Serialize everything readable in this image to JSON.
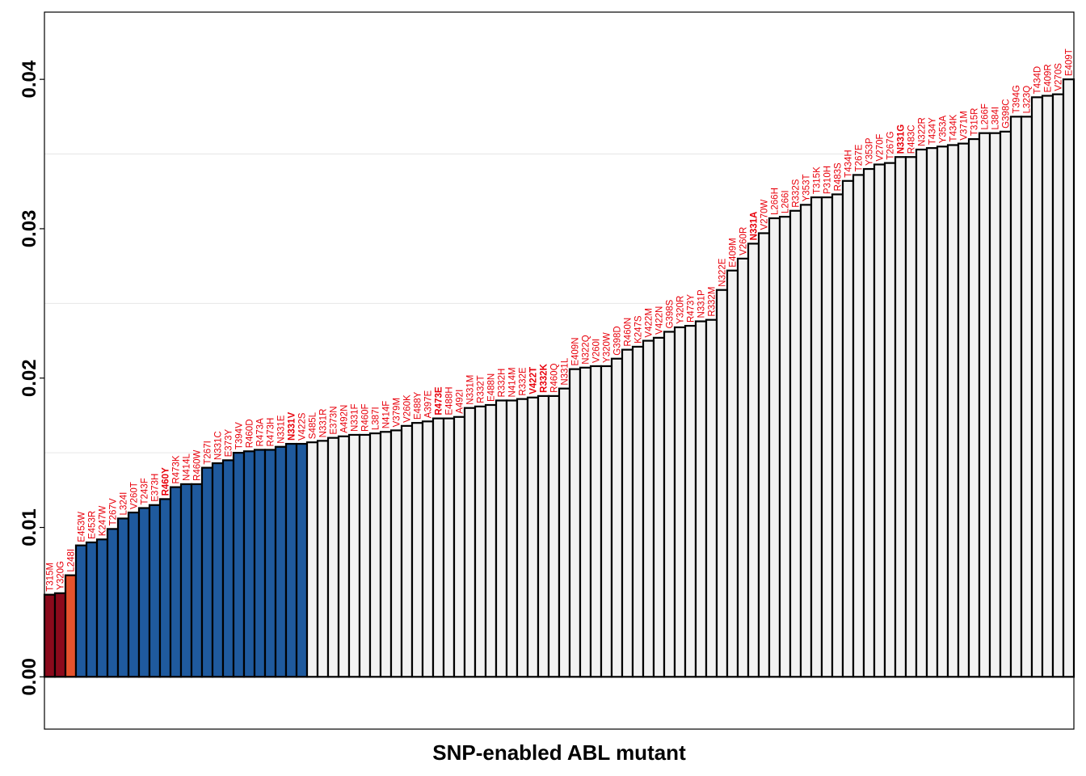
{
  "chart_data": {
    "type": "bar",
    "xlabel": "SNP-enabled ABL mutant",
    "ylabel": "",
    "ylim": [
      -0.0035,
      0.0445
    ],
    "yticks": [
      0.0,
      0.01,
      0.02,
      0.03,
      0.04
    ],
    "ytick_labels": [
      "0.00",
      "0.01",
      "0.02",
      "0.03",
      "0.04"
    ],
    "grid": "horizontal minor lines only",
    "label_color": "#e8000b",
    "bar_outline_color": "#000000",
    "group_colors": {
      "dark_red": "#8b0a1c",
      "orange": "#e6532d",
      "blue": "#1f5a9e",
      "white": "#f2f2f2"
    },
    "bars": [
      {
        "label": "T315M",
        "value": 0.0055,
        "color": "#8b0a1c"
      },
      {
        "label": "Y320G",
        "value": 0.0056,
        "color": "#8b0a1c"
      },
      {
        "label": "L248I",
        "value": 0.0068,
        "color": "#e6532d"
      },
      {
        "label": "E453W",
        "value": 0.0088,
        "color": "#1f5a9e"
      },
      {
        "label": "E453R",
        "value": 0.009,
        "color": "#1f5a9e"
      },
      {
        "label": "K247W",
        "value": 0.0092,
        "color": "#1f5a9e"
      },
      {
        "label": "T267V",
        "value": 0.0099,
        "color": "#1f5a9e"
      },
      {
        "label": "L324I",
        "value": 0.0106,
        "color": "#1f5a9e"
      },
      {
        "label": "V260T",
        "value": 0.011,
        "color": "#1f5a9e"
      },
      {
        "label": "T243F",
        "value": 0.0113,
        "color": "#1f5a9e"
      },
      {
        "label": "E373H",
        "value": 0.0115,
        "color": "#1f5a9e"
      },
      {
        "label": "R460Y",
        "value": 0.0119,
        "color": "#1f5a9e",
        "bold": true
      },
      {
        "label": "R473K",
        "value": 0.0127,
        "color": "#1f5a9e"
      },
      {
        "label": "N414L",
        "value": 0.0129,
        "color": "#1f5a9e"
      },
      {
        "label": "R460W",
        "value": 0.0129,
        "color": "#1f5a9e"
      },
      {
        "label": "T267I",
        "value": 0.014,
        "color": "#1f5a9e"
      },
      {
        "label": "N331C",
        "value": 0.0143,
        "color": "#1f5a9e"
      },
      {
        "label": "E373Y",
        "value": 0.0145,
        "color": "#1f5a9e"
      },
      {
        "label": "T394V",
        "value": 0.015,
        "color": "#1f5a9e"
      },
      {
        "label": "R460D",
        "value": 0.0151,
        "color": "#1f5a9e"
      },
      {
        "label": "R473A",
        "value": 0.0152,
        "color": "#1f5a9e"
      },
      {
        "label": "R473H",
        "value": 0.0152,
        "color": "#1f5a9e"
      },
      {
        "label": "N331E",
        "value": 0.0154,
        "color": "#1f5a9e"
      },
      {
        "label": "N331V",
        "value": 0.0156,
        "color": "#1f5a9e",
        "bold": true
      },
      {
        "label": "V422S",
        "value": 0.0156,
        "color": "#1f5a9e"
      },
      {
        "label": "S485L",
        "value": 0.0157,
        "color": "#f2f2f2"
      },
      {
        "label": "N331R",
        "value": 0.0158,
        "color": "#f2f2f2"
      },
      {
        "label": "E373N",
        "value": 0.016,
        "color": "#f2f2f2"
      },
      {
        "label": "A492N",
        "value": 0.0161,
        "color": "#f2f2f2"
      },
      {
        "label": "N331F",
        "value": 0.0162,
        "color": "#f2f2f2"
      },
      {
        "label": "R460F",
        "value": 0.0162,
        "color": "#f2f2f2"
      },
      {
        "label": "L387I",
        "value": 0.0163,
        "color": "#f2f2f2"
      },
      {
        "label": "N414F",
        "value": 0.0164,
        "color": "#f2f2f2"
      },
      {
        "label": "V379M",
        "value": 0.0165,
        "color": "#f2f2f2"
      },
      {
        "label": "V260K",
        "value": 0.0168,
        "color": "#f2f2f2"
      },
      {
        "label": "E488Y",
        "value": 0.017,
        "color": "#f2f2f2"
      },
      {
        "label": "A397E",
        "value": 0.0171,
        "color": "#f2f2f2"
      },
      {
        "label": "R473E",
        "value": 0.0173,
        "color": "#f2f2f2",
        "bold": true
      },
      {
        "label": "E488H",
        "value": 0.0173,
        "color": "#f2f2f2"
      },
      {
        "label": "A492I",
        "value": 0.0174,
        "color": "#f2f2f2"
      },
      {
        "label": "N331M",
        "value": 0.018,
        "color": "#f2f2f2"
      },
      {
        "label": "R332T",
        "value": 0.0181,
        "color": "#f2f2f2"
      },
      {
        "label": "E488N",
        "value": 0.0182,
        "color": "#f2f2f2"
      },
      {
        "label": "R332H",
        "value": 0.0185,
        "color": "#f2f2f2"
      },
      {
        "label": "N414M",
        "value": 0.0185,
        "color": "#f2f2f2"
      },
      {
        "label": "R332E",
        "value": 0.0186,
        "color": "#f2f2f2"
      },
      {
        "label": "V422T",
        "value": 0.0187,
        "color": "#f2f2f2",
        "bold": true
      },
      {
        "label": "R332K",
        "value": 0.0188,
        "color": "#f2f2f2",
        "bold": true
      },
      {
        "label": "R460Q",
        "value": 0.0188,
        "color": "#f2f2f2"
      },
      {
        "label": "N331L",
        "value": 0.0193,
        "color": "#f2f2f2"
      },
      {
        "label": "E409N",
        "value": 0.0206,
        "color": "#f2f2f2"
      },
      {
        "label": "N322Q",
        "value": 0.0207,
        "color": "#f2f2f2"
      },
      {
        "label": "V260I",
        "value": 0.0208,
        "color": "#f2f2f2"
      },
      {
        "label": "Y320W",
        "value": 0.0208,
        "color": "#f2f2f2"
      },
      {
        "label": "G398D",
        "value": 0.0213,
        "color": "#f2f2f2"
      },
      {
        "label": "R460N",
        "value": 0.0219,
        "color": "#f2f2f2"
      },
      {
        "label": "K247S",
        "value": 0.0221,
        "color": "#f2f2f2"
      },
      {
        "label": "V422M",
        "value": 0.0225,
        "color": "#f2f2f2"
      },
      {
        "label": "V422N",
        "value": 0.0227,
        "color": "#f2f2f2"
      },
      {
        "label": "G398S",
        "value": 0.0231,
        "color": "#f2f2f2"
      },
      {
        "label": "Y320R",
        "value": 0.0234,
        "color": "#f2f2f2"
      },
      {
        "label": "R473Y",
        "value": 0.0235,
        "color": "#f2f2f2"
      },
      {
        "label": "N331P",
        "value": 0.0238,
        "color": "#f2f2f2"
      },
      {
        "label": "R332M",
        "value": 0.0239,
        "color": "#f2f2f2"
      },
      {
        "label": "N322E",
        "value": 0.0259,
        "color": "#f2f2f2"
      },
      {
        "label": "E409M",
        "value": 0.0272,
        "color": "#f2f2f2"
      },
      {
        "label": "V260R",
        "value": 0.028,
        "color": "#f2f2f2"
      },
      {
        "label": "N331A",
        "value": 0.029,
        "color": "#f2f2f2",
        "bold": true
      },
      {
        "label": "V270W",
        "value": 0.0297,
        "color": "#f2f2f2"
      },
      {
        "label": "L266H",
        "value": 0.0307,
        "color": "#f2f2f2"
      },
      {
        "label": "L266I",
        "value": 0.0308,
        "color": "#f2f2f2"
      },
      {
        "label": "R332S",
        "value": 0.0312,
        "color": "#f2f2f2"
      },
      {
        "label": "Y353T",
        "value": 0.0316,
        "color": "#f2f2f2"
      },
      {
        "label": "T315K",
        "value": 0.0321,
        "color": "#f2f2f2"
      },
      {
        "label": "P310H",
        "value": 0.0321,
        "color": "#f2f2f2"
      },
      {
        "label": "R483S",
        "value": 0.0323,
        "color": "#f2f2f2"
      },
      {
        "label": "T434H",
        "value": 0.0332,
        "color": "#f2f2f2"
      },
      {
        "label": "T267E",
        "value": 0.0336,
        "color": "#f2f2f2"
      },
      {
        "label": "Y353P",
        "value": 0.034,
        "color": "#f2f2f2"
      },
      {
        "label": "V270F",
        "value": 0.0343,
        "color": "#f2f2f2"
      },
      {
        "label": "T267G",
        "value": 0.0344,
        "color": "#f2f2f2"
      },
      {
        "label": "N331G",
        "value": 0.0348,
        "color": "#f2f2f2",
        "bold": true
      },
      {
        "label": "R483C",
        "value": 0.0348,
        "color": "#f2f2f2"
      },
      {
        "label": "N322R",
        "value": 0.0353,
        "color": "#f2f2f2"
      },
      {
        "label": "T434Y",
        "value": 0.0354,
        "color": "#f2f2f2"
      },
      {
        "label": "Y353A",
        "value": 0.0355,
        "color": "#f2f2f2"
      },
      {
        "label": "T434K",
        "value": 0.0356,
        "color": "#f2f2f2"
      },
      {
        "label": "V371M",
        "value": 0.0357,
        "color": "#f2f2f2"
      },
      {
        "label": "T315R",
        "value": 0.036,
        "color": "#f2f2f2"
      },
      {
        "label": "L266F",
        "value": 0.0364,
        "color": "#f2f2f2"
      },
      {
        "label": "L384I",
        "value": 0.0364,
        "color": "#f2f2f2"
      },
      {
        "label": "G398C",
        "value": 0.0365,
        "color": "#f2f2f2"
      },
      {
        "label": "T394G",
        "value": 0.0375,
        "color": "#f2f2f2"
      },
      {
        "label": "L323Q",
        "value": 0.0375,
        "color": "#f2f2f2"
      },
      {
        "label": "T434D",
        "value": 0.0388,
        "color": "#f2f2f2"
      },
      {
        "label": "E409R",
        "value": 0.0389,
        "color": "#f2f2f2"
      },
      {
        "label": "V270S",
        "value": 0.039,
        "color": "#f2f2f2"
      },
      {
        "label": "E409T",
        "value": 0.04,
        "color": "#f2f2f2"
      }
    ]
  }
}
